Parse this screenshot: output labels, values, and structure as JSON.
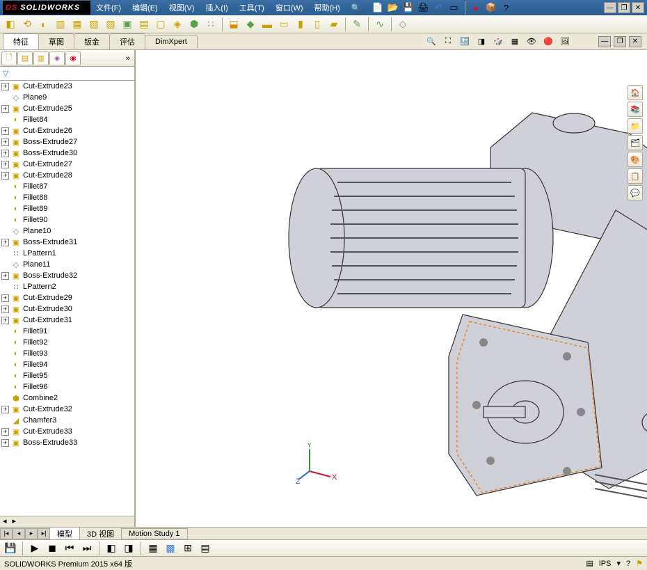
{
  "app": {
    "name": "SOLIDWORKS"
  },
  "menu": {
    "file": "文件(F)",
    "edit": "编辑(E)",
    "view": "视图(V)",
    "insert": "插入(I)",
    "tools": "工具(T)",
    "window": "窗口(W)",
    "help": "帮助(H)"
  },
  "command_tabs": {
    "features": "特征",
    "sketch": "草图",
    "sheetmetal": "钣金",
    "evaluate": "评估",
    "dimxpert": "DimXpert"
  },
  "tree": {
    "items": [
      {
        "exp": "+",
        "icon": "cut",
        "label": "Cut-Extrude23"
      },
      {
        "exp": "",
        "icon": "plane",
        "label": "Plane9"
      },
      {
        "exp": "+",
        "icon": "cut",
        "label": "Cut-Extrude25"
      },
      {
        "exp": "",
        "icon": "fillet",
        "label": "Fillet84"
      },
      {
        "exp": "+",
        "icon": "cut",
        "label": "Cut-Extrude26"
      },
      {
        "exp": "+",
        "icon": "boss",
        "label": "Boss-Extrude27"
      },
      {
        "exp": "+",
        "icon": "boss",
        "label": "Boss-Extrude30"
      },
      {
        "exp": "+",
        "icon": "cut",
        "label": "Cut-Extrude27"
      },
      {
        "exp": "+",
        "icon": "cut",
        "label": "Cut-Extrude28"
      },
      {
        "exp": "",
        "icon": "fillet",
        "label": "Fillet87"
      },
      {
        "exp": "",
        "icon": "fillet",
        "label": "Fillet88"
      },
      {
        "exp": "",
        "icon": "fillet",
        "label": "Fillet89"
      },
      {
        "exp": "",
        "icon": "fillet",
        "label": "Fillet90"
      },
      {
        "exp": "",
        "icon": "plane",
        "label": "Plane10"
      },
      {
        "exp": "+",
        "icon": "boss",
        "label": "Boss-Extrude31"
      },
      {
        "exp": "",
        "icon": "pattern",
        "label": "LPattern1"
      },
      {
        "exp": "",
        "icon": "plane",
        "label": "Plane11"
      },
      {
        "exp": "+",
        "icon": "boss",
        "label": "Boss-Extrude32"
      },
      {
        "exp": "",
        "icon": "pattern",
        "label": "LPattern2"
      },
      {
        "exp": "+",
        "icon": "cut",
        "label": "Cut-Extrude29"
      },
      {
        "exp": "+",
        "icon": "cut",
        "label": "Cut-Extrude30"
      },
      {
        "exp": "+",
        "icon": "cut",
        "label": "Cut-Extrude31"
      },
      {
        "exp": "",
        "icon": "fillet",
        "label": "Fillet91"
      },
      {
        "exp": "",
        "icon": "fillet",
        "label": "Fillet92"
      },
      {
        "exp": "",
        "icon": "fillet",
        "label": "Fillet93"
      },
      {
        "exp": "",
        "icon": "fillet",
        "label": "Fillet94"
      },
      {
        "exp": "",
        "icon": "fillet",
        "label": "Fillet95"
      },
      {
        "exp": "",
        "icon": "fillet",
        "label": "Fillet96"
      },
      {
        "exp": "",
        "icon": "combine",
        "label": "Combine2"
      },
      {
        "exp": "+",
        "icon": "cut",
        "label": "Cut-Extrude32"
      },
      {
        "exp": "",
        "icon": "chamfer",
        "label": "Chamfer3"
      },
      {
        "exp": "+",
        "icon": "cut",
        "label": "Cut-Extrude33"
      },
      {
        "exp": "+",
        "icon": "boss",
        "label": "Boss-Extrude33"
      }
    ]
  },
  "triad": {
    "x": "X",
    "y": "Y",
    "z": "Z"
  },
  "bottom_tabs": {
    "model": "模型",
    "view3d": "3D 视图",
    "motion": "Motion Study 1"
  },
  "status": {
    "text": "SOLIDWORKS Premium 2015 x64 版",
    "units": "IPS"
  },
  "colors": {
    "background": "#d4d0c8",
    "viewport": "#ffffff",
    "model_fill": "#cdcdd4",
    "model_stroke": "#2b2b2b",
    "highlight": "#e88b2e",
    "triad_x": "#d7102a",
    "triad_y": "#2a9d2a",
    "triad_z": "#2a5dd7"
  }
}
